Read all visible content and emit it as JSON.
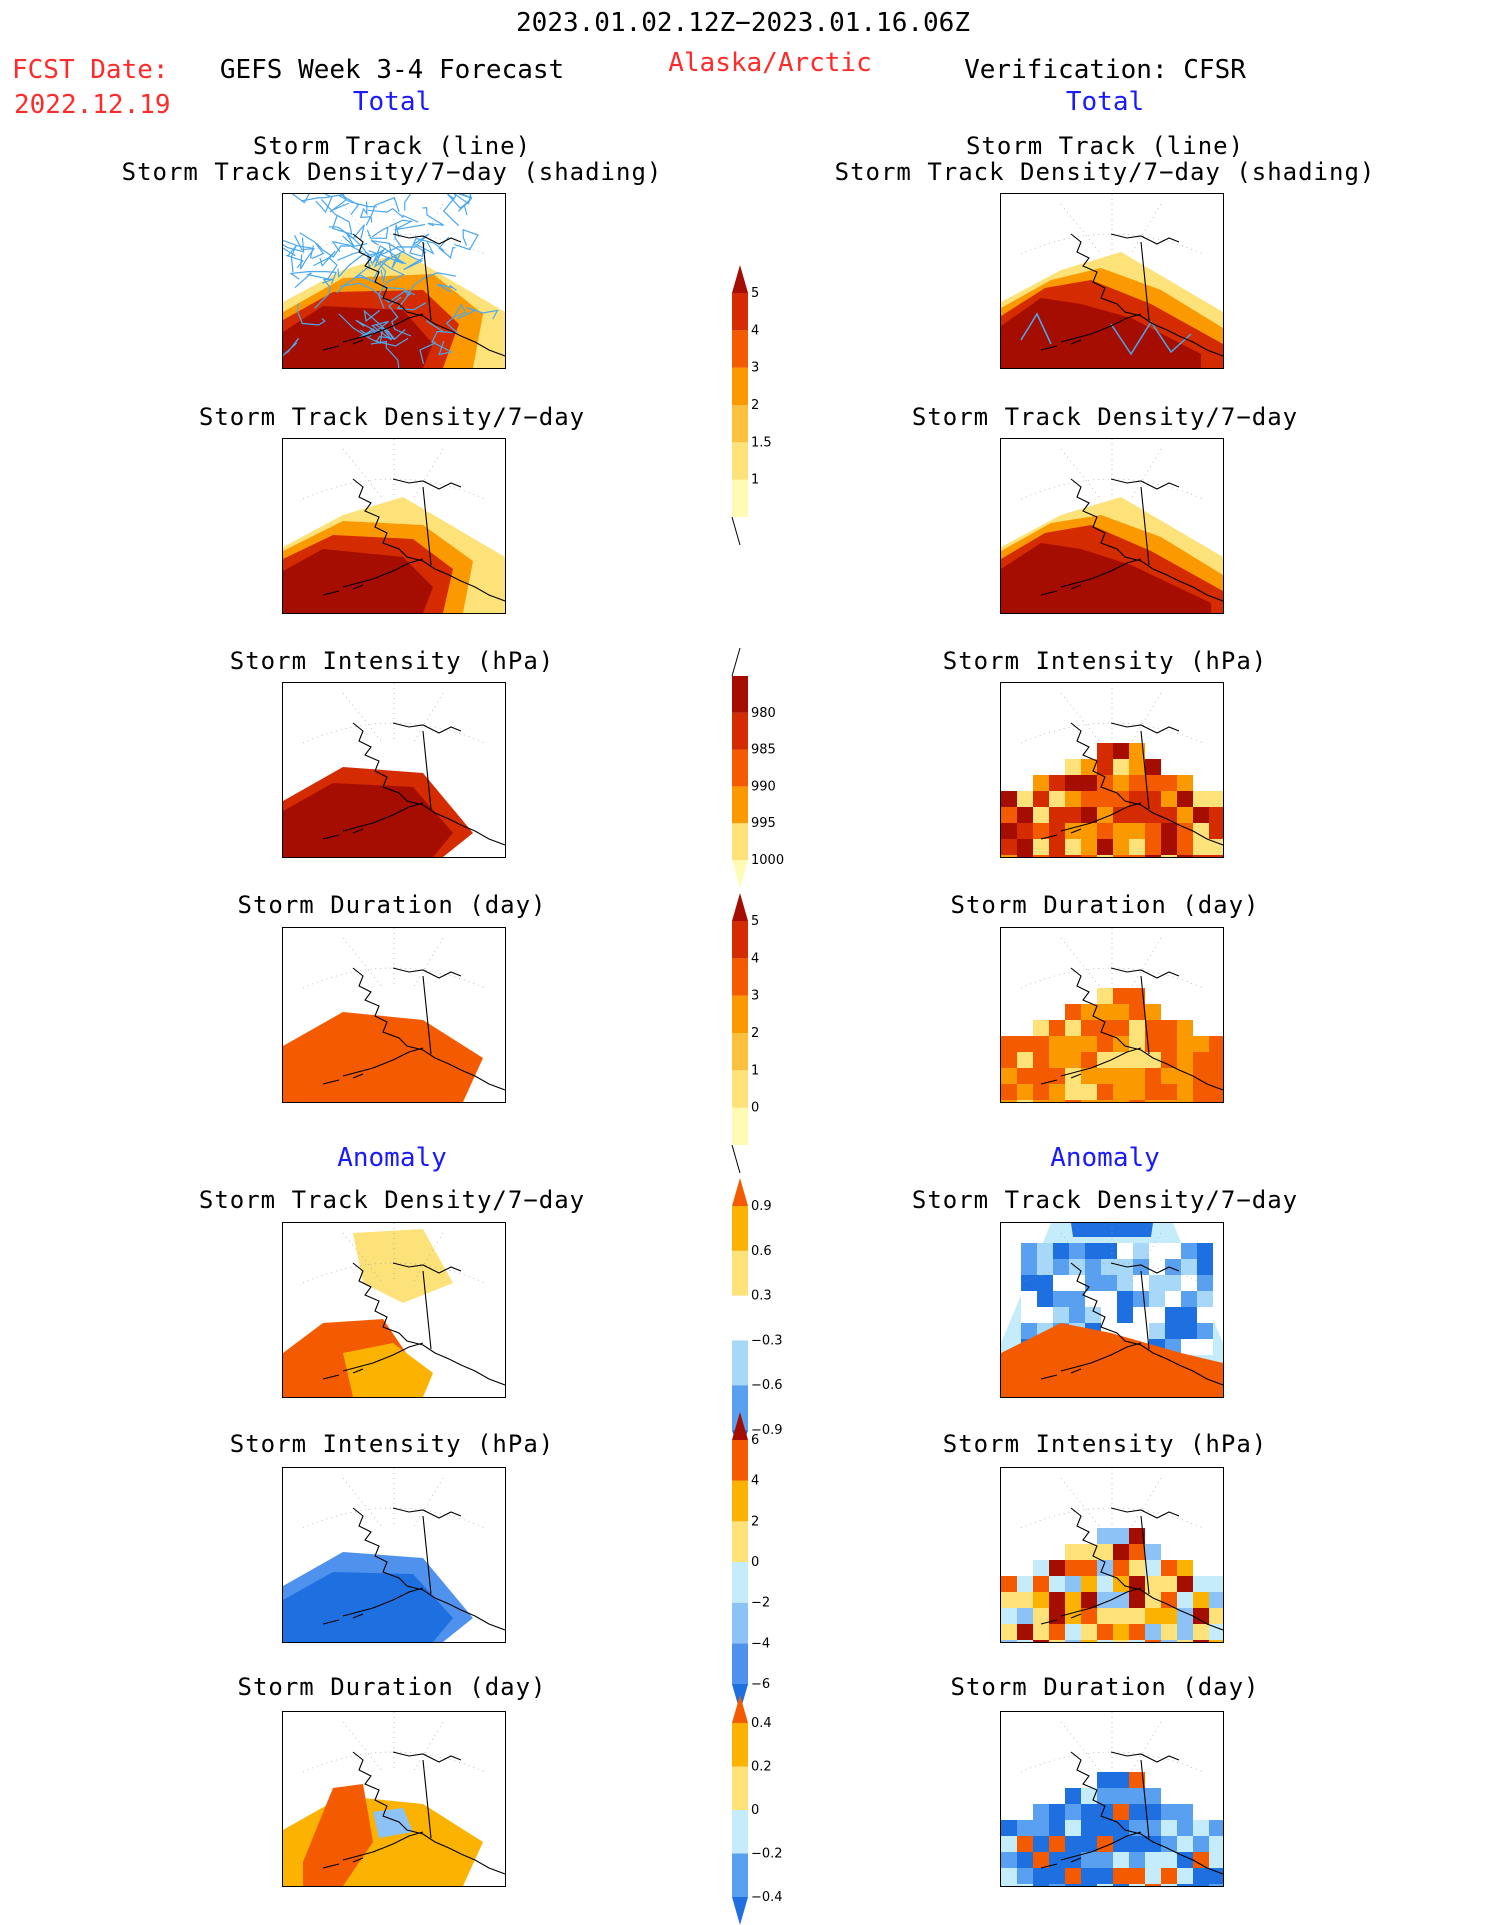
{
  "header": {
    "date_range": "2023.01.02.12Z−2023.01.16.06Z",
    "fcst_label": "FCST Date:",
    "fcst_date": "2022.12.19",
    "forecast_title": "GEFS Week 3-4 Forecast",
    "region": "Alaska/Arctic",
    "verification": "Verification: CFSR"
  },
  "sections": {
    "total": "Total",
    "anomaly": "Anomaly"
  },
  "rows": [
    {
      "title1": "Storm Track (line)",
      "title2": "Storm Track Density/7−day (shading)",
      "left_theme": "track_fc",
      "right_theme": "track_obs"
    },
    {
      "title1": "Storm Track Density/7−day",
      "title2": "",
      "left_theme": "dens_fc",
      "right_theme": "dens_obs"
    },
    {
      "title1": "Storm Intensity (hPa)",
      "title2": "",
      "left_theme": "int_fc",
      "right_theme": "int_obs"
    },
    {
      "title1": "Storm Duration (day)",
      "title2": "",
      "left_theme": "dur_fc",
      "right_theme": "dur_obs"
    },
    {
      "title1": "Storm Track Density/7−day",
      "title2": "",
      "left_theme": "adens_fc",
      "right_theme": "adens_obs"
    },
    {
      "title1": "Storm Intensity (hPa)",
      "title2": "",
      "left_theme": "aint_fc",
      "right_theme": "aint_obs"
    },
    {
      "title1": "Storm Duration (day)",
      "title2": "",
      "left_theme": "adur_fc",
      "right_theme": "adur_obs"
    }
  ],
  "colorbars": [
    {
      "id": "density",
      "levels": [
        "1",
        "1.5",
        "2",
        "3",
        "4",
        "5"
      ],
      "colors": [
        "#fffbb5",
        "#fde27a",
        "#fbc03e",
        "#fb9a00",
        "#f45a00",
        "#d42b00",
        "#a50d00"
      ],
      "extend": "max"
    },
    {
      "id": "intensity",
      "levels": [
        "1000",
        "995",
        "990",
        "985",
        "980"
      ],
      "colors": [
        "#fffbb5",
        "#fde27a",
        "#fb9a00",
        "#f45a00",
        "#d42b00",
        "#a50d00"
      ],
      "extend": "min"
    },
    {
      "id": "duration",
      "levels": [
        "0",
        "1",
        "2",
        "3",
        "4",
        "5"
      ],
      "colors": [
        "#fffbb5",
        "#fde27a",
        "#fbc03e",
        "#fb9a00",
        "#f45a00",
        "#d42b00",
        "#a50d00"
      ],
      "extend": "max"
    },
    {
      "id": "density_anom",
      "levels": [
        "−0.9",
        "−0.6",
        "−0.3",
        "0.3",
        "0.6",
        "0.9"
      ],
      "colors": [
        "#1e6fe0",
        "#5aa0f0",
        "#a8d8f8",
        "#ffffff",
        "#fde27a",
        "#fbb200",
        "#f45a00"
      ],
      "extend": "both"
    },
    {
      "id": "intensity_anom",
      "levels": [
        "−6",
        "−4",
        "−2",
        "0",
        "2",
        "4",
        "6"
      ],
      "colors": [
        "#1e6fe0",
        "#4f92ee",
        "#8cc2f6",
        "#c5ecfb",
        "#fde27a",
        "#fbb200",
        "#f45a00",
        "#a50d00"
      ],
      "extend": "both"
    },
    {
      "id": "duration_anom",
      "levels": [
        "−0.4",
        "−0.2",
        "0",
        "0.2",
        "0.4"
      ],
      "colors": [
        "#1e6fe0",
        "#5aa0f0",
        "#c5ecfb",
        "#fde27a",
        "#fbb200",
        "#f45a00"
      ],
      "extend": "both"
    }
  ]
}
